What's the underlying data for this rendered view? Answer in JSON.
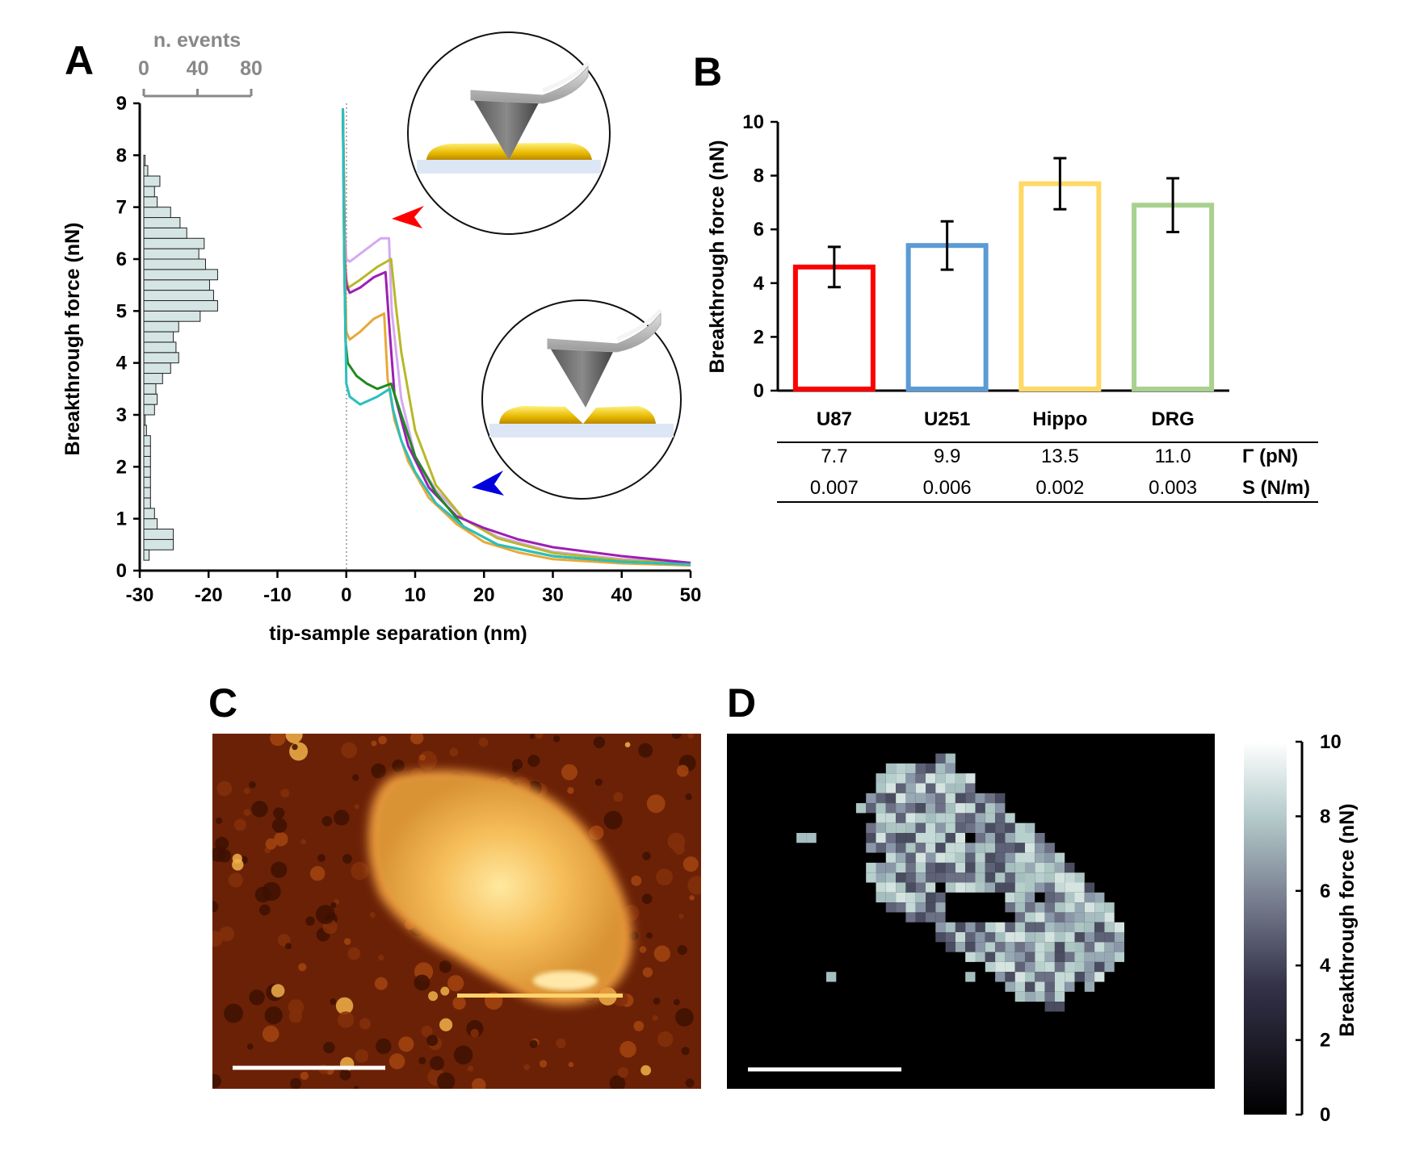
{
  "panels": {
    "a": "A",
    "b": "B",
    "c": "C",
    "d": "D"
  },
  "chart_data": [
    {
      "id": "A",
      "type": "line",
      "xlabel": "tip-sample separation (nm)",
      "ylabel": "Breakthrough force (nN)",
      "xlim": [
        -30,
        50
      ],
      "ylim": [
        0,
        9
      ],
      "x_ticks": [
        "-30",
        "-20",
        "-10",
        "0",
        "10",
        "20",
        "30",
        "40",
        "50"
      ],
      "y_ticks": [
        "0",
        "1",
        "2",
        "3",
        "4",
        "5",
        "6",
        "7",
        "8",
        "9"
      ],
      "series": [
        {
          "name": "light purple",
          "color": "#d6a8f0",
          "x": [
            -0.5,
            -0.2,
            0,
            0.5,
            2,
            4,
            5,
            6.2,
            6.6,
            8,
            10,
            13,
            17,
            22,
            30,
            40,
            50
          ],
          "y": [
            8.9,
            6.5,
            6.0,
            5.95,
            6.1,
            6.3,
            6.4,
            6.4,
            5.0,
            3.3,
            2.2,
            1.55,
            1.0,
            0.65,
            0.36,
            0.22,
            0.15
          ]
        },
        {
          "name": "olive",
          "color": "#b8b82a",
          "x": [
            -0.5,
            -0.2,
            0,
            0.3,
            2,
            4.5,
            6.5,
            7.2,
            8,
            10,
            13,
            17,
            22,
            30,
            40,
            50
          ],
          "y": [
            8.9,
            6.0,
            5.6,
            5.45,
            5.6,
            5.85,
            6.0,
            5.1,
            4.2,
            2.7,
            1.65,
            1.0,
            0.62,
            0.34,
            0.2,
            0.14
          ]
        },
        {
          "name": "purple",
          "color": "#9c1fb5",
          "x": [
            -0.5,
            -0.2,
            0,
            0.5,
            2,
            4,
            5.7,
            6.3,
            7,
            9,
            12,
            16,
            20,
            25,
            30,
            40,
            50
          ],
          "y": [
            8.9,
            6.0,
            5.5,
            5.35,
            5.45,
            5.65,
            5.75,
            4.6,
            3.4,
            2.4,
            1.6,
            1.05,
            0.82,
            0.6,
            0.45,
            0.28,
            0.15
          ]
        },
        {
          "name": "orange",
          "color": "#e8a93a",
          "x": [
            -0.5,
            -0.2,
            0,
            0.5,
            2,
            4,
            5.5,
            6,
            7,
            9,
            12,
            16,
            20,
            25,
            30,
            40,
            50
          ],
          "y": [
            8.9,
            5.8,
            4.6,
            4.45,
            4.6,
            4.85,
            4.95,
            3.7,
            2.9,
            2.1,
            1.4,
            0.9,
            0.55,
            0.35,
            0.22,
            0.14,
            0.1
          ]
        },
        {
          "name": "green",
          "color": "#1e8a1e",
          "x": [
            -0.5,
            -0.3,
            -0.1,
            0.2,
            1.5,
            3,
            4.5,
            6.5,
            8,
            10,
            13,
            17,
            22,
            30,
            40,
            50
          ],
          "y": [
            8.9,
            6.0,
            4.4,
            4.0,
            3.75,
            3.6,
            3.5,
            3.6,
            3.0,
            2.2,
            1.5,
            0.85,
            0.5,
            0.28,
            0.17,
            0.12
          ]
        },
        {
          "name": "cyan",
          "color": "#2bbfbf",
          "x": [
            -0.5,
            -0.3,
            0,
            0.5,
            2,
            4.5,
            6.3,
            6.8,
            8,
            10,
            13,
            17,
            22,
            30,
            40,
            50
          ],
          "y": [
            8.9,
            6.0,
            3.6,
            3.35,
            3.2,
            3.35,
            3.5,
            3.1,
            2.5,
            1.9,
            1.3,
            0.85,
            0.5,
            0.28,
            0.17,
            0.12
          ]
        }
      ],
      "histogram": {
        "xlabel": "n. events",
        "x_ticks": [
          "0",
          "40",
          "80"
        ],
        "xlim": [
          0,
          80
        ],
        "bin_width": 0.2,
        "bins_start": [
          0.2,
          0.4,
          0.6,
          0.8,
          1.0,
          1.2,
          1.4,
          1.6,
          1.8,
          2.0,
          2.2,
          2.4,
          2.6,
          2.8,
          3.0,
          3.2,
          3.4,
          3.6,
          3.8,
          4.0,
          4.2,
          4.4,
          4.6,
          4.8,
          5.0,
          5.2,
          5.4,
          5.6,
          5.8,
          6.0,
          6.2,
          6.4,
          6.6,
          6.8,
          7.0,
          7.2,
          7.4,
          7.6,
          7.8
        ],
        "counts": [
          4,
          22,
          22,
          10,
          8,
          5,
          5,
          5,
          5,
          5,
          5,
          5,
          2,
          1,
          8,
          10,
          9,
          14,
          20,
          26,
          24,
          22,
          26,
          42,
          55,
          52,
          49,
          55,
          46,
          41,
          45,
          32,
          27,
          20,
          10,
          8,
          12,
          3,
          1
        ]
      },
      "annotations": {
        "upper_arrow_color": "#ff0000",
        "lower_arrow_color": "#0000dd"
      }
    },
    {
      "id": "B",
      "type": "bar",
      "ylabel": "Breakthrough force (nN)",
      "ylim": [
        0,
        10
      ],
      "y_ticks": [
        "0",
        "2",
        "4",
        "6",
        "8",
        "10"
      ],
      "categories": [
        "U87",
        "U251",
        "Hippo",
        "DRG"
      ],
      "values": [
        4.6,
        5.4,
        7.7,
        6.9
      ],
      "errors": [
        0.75,
        0.9,
        0.95,
        1.0
      ],
      "colors": [
        "#ff0000",
        "#5b9bd5",
        "#ffd966",
        "#a9d18e"
      ],
      "table": {
        "rows": [
          {
            "label": "Γ (pN)",
            "values": [
              "7.7",
              "9.9",
              "13.5",
              "11.0"
            ]
          },
          {
            "label": "S (N/m)",
            "values": [
              "0.007",
              "0.006",
              "0.002",
              "0.003"
            ]
          }
        ]
      }
    },
    {
      "id": "D",
      "type": "heatmap",
      "colorbar_label": "Breakthrough force (nN)",
      "colorbar_ticks": [
        "0",
        "2",
        "4",
        "6",
        "8",
        "10"
      ],
      "clim": [
        0,
        10
      ]
    }
  ]
}
